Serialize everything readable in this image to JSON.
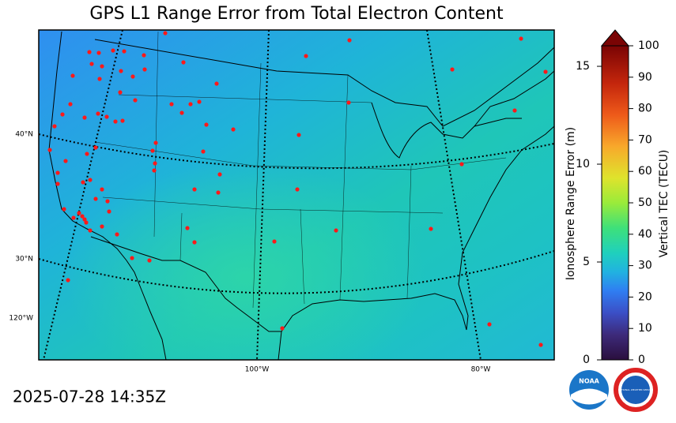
{
  "title": "GPS L1 Range Error from Total Electron Content",
  "timestamp": "2025-07-28 14:35Z",
  "map": {
    "lat_labels": [
      "40°N",
      "30°N"
    ],
    "lon_labels": [
      "120°W",
      "100°W",
      "80°W"
    ]
  },
  "colorbar": {
    "left_label": "Ionosphere Range Error (m)",
    "left_lim": [
      0,
      16.05
    ],
    "left_ticks": [
      0,
      5,
      10,
      15
    ],
    "right_label": "Vertical TEC (TECU)",
    "right_lim": [
      0,
      100
    ],
    "right_ticks": [
      0,
      10,
      20,
      30,
      40,
      50,
      60,
      70,
      80,
      90,
      100
    ]
  },
  "logos": {
    "noaa": "NOAA",
    "nws": "NATIONAL WEATHER SERVICE"
  }
}
